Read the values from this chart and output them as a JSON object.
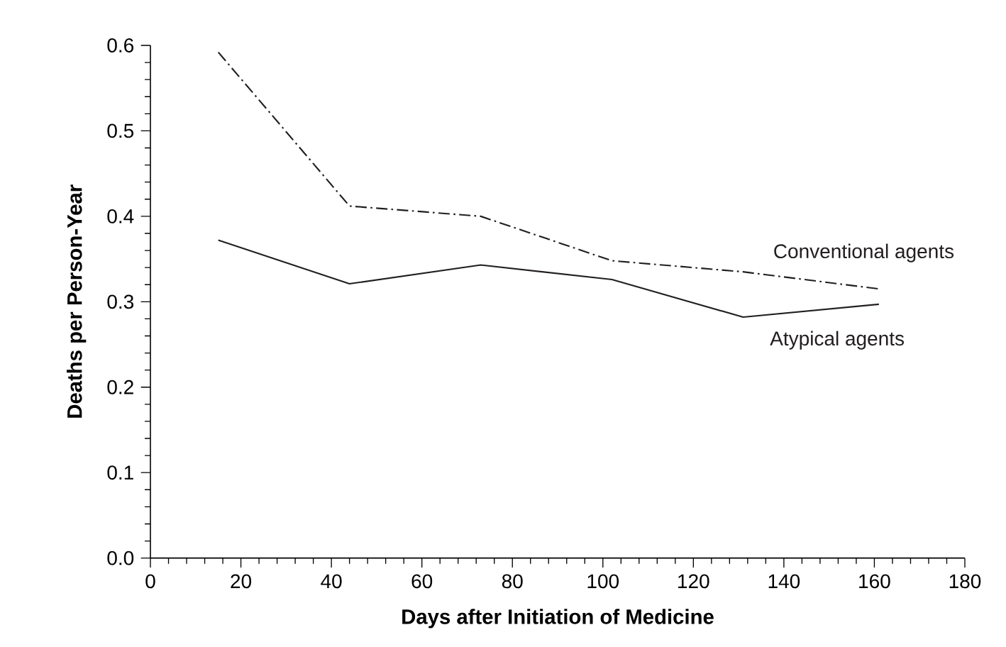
{
  "chart_data": {
    "type": "line",
    "xlabel": "Days after Initiation of Medicine",
    "ylabel": "Deaths per Person-Year",
    "x": [
      15,
      44,
      73,
      102,
      131,
      161
    ],
    "series": [
      {
        "name": "Conventional agents",
        "color": "#231f20",
        "line_style": "dashed",
        "values": [
          0.592,
          0.412,
          0.4,
          0.348,
          0.335,
          0.315
        ]
      },
      {
        "name": "Atypical agents",
        "color": "#231f20",
        "line_style": "solid",
        "values": [
          0.372,
          0.321,
          0.343,
          0.326,
          0.282,
          0.297
        ]
      }
    ],
    "xlim": [
      0,
      180
    ],
    "xticks": [
      0,
      20,
      40,
      60,
      80,
      100,
      120,
      140,
      160,
      180
    ],
    "ylim": [
      0,
      0.6
    ],
    "yticks": [
      {
        "value": 0,
        "label": "0.0"
      },
      0.1,
      0.2,
      0.3,
      0.4,
      0.5,
      0.6
    ],
    "grid": false,
    "legend": false,
    "marker": "none"
  }
}
